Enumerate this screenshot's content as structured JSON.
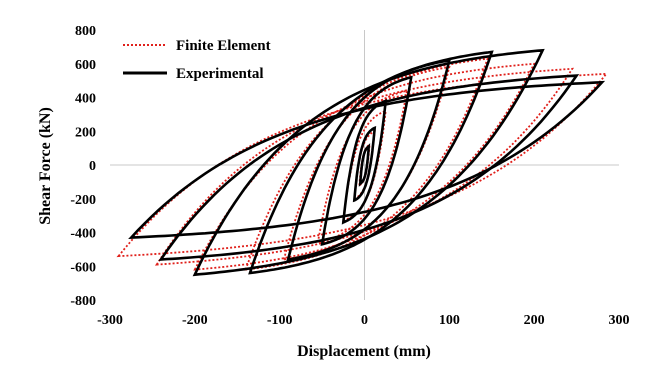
{
  "chart_data": {
    "type": "line",
    "title": "",
    "xlabel": "Displacement (mm)",
    "ylabel": "Shear Force (kN)",
    "xlim": [
      -300,
      300
    ],
    "ylim": [
      -800,
      800
    ],
    "x_ticks": [
      "-300",
      "-200",
      "-100",
      "0",
      "100",
      "200",
      "300"
    ],
    "y_ticks": [
      "800",
      "600",
      "400",
      "200",
      "0",
      "-200",
      "-400",
      "-600",
      "-800"
    ],
    "grid": "axes through origin only",
    "legend": {
      "position": "top-left",
      "entries": [
        "Finite Element",
        "Experimental"
      ]
    },
    "colors": {
      "Finite Element": "#e0201b",
      "Experimental": "#000000"
    },
    "series": [
      {
        "name": "Finite Element",
        "style": "dotted",
        "loops": [
          {
            "dmax": 6,
            "fmax": 120,
            "dmin": -6,
            "fmin": -120,
            "res": 10
          },
          {
            "dmax": 12,
            "fmax": 200,
            "dmin": -12,
            "fmin": -200,
            "res": 20
          },
          {
            "dmax": 25,
            "fmax": 320,
            "dmin": -25,
            "fmin": -330,
            "res": 40
          },
          {
            "dmax": 50,
            "fmax": 440,
            "dmin": -55,
            "fmin": -460,
            "res": 90
          },
          {
            "dmax": 100,
            "fmax": 580,
            "dmin": -95,
            "fmin": -560,
            "res": 200
          },
          {
            "dmax": 145,
            "fmax": 630,
            "dmin": -140,
            "fmin": -620,
            "res": 260
          },
          {
            "dmax": 200,
            "fmax": 600,
            "dmin": -200,
            "fmin": -620,
            "res": 320
          },
          {
            "dmax": 245,
            "fmax": 570,
            "dmin": -245,
            "fmin": -590,
            "res": 360
          },
          {
            "dmax": 285,
            "fmax": 540,
            "dmin": -290,
            "fmin": -540,
            "res": 400
          }
        ]
      },
      {
        "name": "Experimental",
        "style": "solid",
        "loops": [
          {
            "dmax": 5,
            "fmax": 110,
            "dmin": -5,
            "fmin": -110,
            "res": 8
          },
          {
            "dmax": 12,
            "fmax": 220,
            "dmin": -12,
            "fmin": -210,
            "res": 25
          },
          {
            "dmax": 25,
            "fmax": 380,
            "dmin": -25,
            "fmin": -340,
            "res": 60
          },
          {
            "dmax": 55,
            "fmax": 520,
            "dmin": -50,
            "fmin": -470,
            "res": 120
          },
          {
            "dmax": 100,
            "fmax": 620,
            "dmin": -90,
            "fmin": -560,
            "res": 230
          },
          {
            "dmax": 150,
            "fmax": 670,
            "dmin": -135,
            "fmin": -640,
            "res": 330
          },
          {
            "dmax": 210,
            "fmax": 680,
            "dmin": -200,
            "fmin": -650,
            "res": 380
          },
          {
            "dmax": 250,
            "fmax": 530,
            "dmin": -240,
            "fmin": -560,
            "res": 420
          },
          {
            "dmax": 280,
            "fmax": 490,
            "dmin": -275,
            "fmin": -430,
            "res": 440
          }
        ]
      }
    ]
  }
}
